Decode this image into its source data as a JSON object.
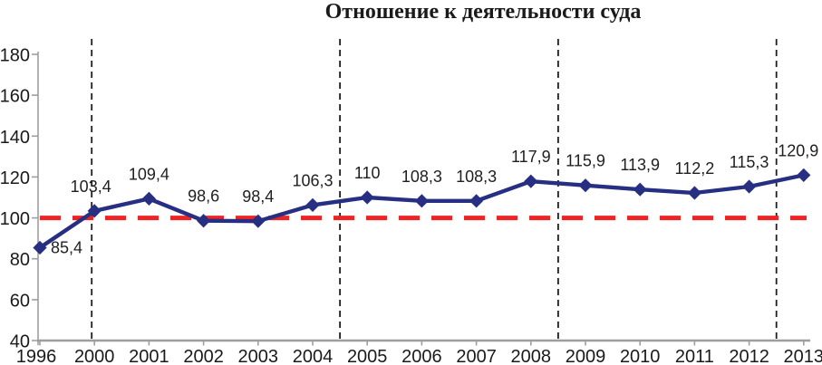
{
  "chart_data": {
    "type": "line",
    "title": "Отношение к деятельности суда",
    "categories": [
      "1996",
      "2000",
      "2001",
      "2002",
      "2003",
      "2004",
      "2005",
      "2006",
      "2007",
      "2008",
      "2009",
      "2010",
      "2011",
      "2012",
      "2013"
    ],
    "series": [
      {
        "name": "Отношение к деятельности суда",
        "values": [
          85.4,
          103.4,
          109.4,
          98.6,
          98.4,
          106.3,
          110,
          108.3,
          108.3,
          117.9,
          115.9,
          113.9,
          112.2,
          115.3,
          120.9
        ],
        "point_labels": [
          "85,4",
          "103,4",
          "109,4",
          "98,6",
          "98,4",
          "106,3",
          "110",
          "108,3",
          "108,3",
          "117,9",
          "115,9",
          "113,9",
          "112,2",
          "115,3",
          "120,9"
        ],
        "color": "#272f82",
        "marker": "diamond"
      }
    ],
    "ylim": [
      40,
      180
    ],
    "yticks": [
      40,
      60,
      80,
      100,
      120,
      140,
      160,
      180
    ],
    "xlabel": "",
    "ylabel": "",
    "grid": false,
    "legend": "none",
    "reference_line": {
      "value": 100,
      "color": "#ee2324",
      "style": "dashed"
    },
    "vertical_guides": {
      "description": "dashed black guides at 2000 and midway 2004/2005, 2008/2009, 2012/2013",
      "category_indices": [
        0.95,
        5.5,
        9.5,
        13.5
      ],
      "color": "#1f1f1f",
      "style": "dashed"
    },
    "axis_color": "#9e9e9e",
    "tick_label_color": "#1a1a1a",
    "data_label_color": "#1f1f1f"
  }
}
